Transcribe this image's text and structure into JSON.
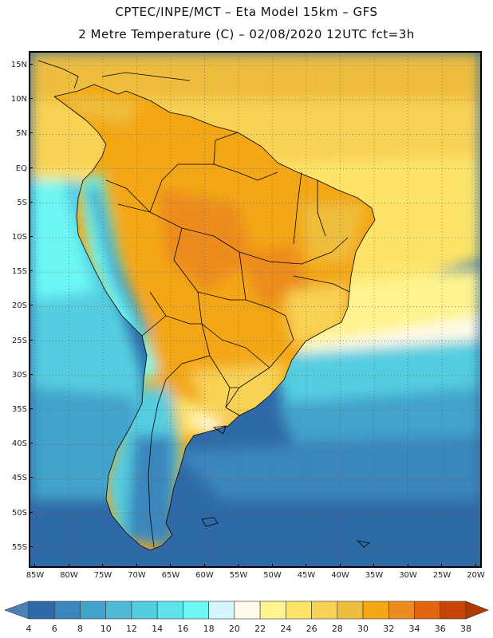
{
  "title_line1": "CPTEC/INPE/MCT –  Eta Model 15km – GFS",
  "title_line2": "2 Metre Temperature (C) – 02/08/2020 12UTC fct=3h",
  "map": {
    "latitudes": [
      "15N",
      "10N",
      "5N",
      "EQ",
      "5S",
      "10S",
      "15S",
      "20S",
      "25S",
      "30S",
      "35S",
      "40S",
      "45S",
      "50S",
      "55S"
    ],
    "longitudes": [
      "85W",
      "80W",
      "75W",
      "70W",
      "65W",
      "60W",
      "55W",
      "50W",
      "45W",
      "40W",
      "35W",
      "30W",
      "25W",
      "20W"
    ]
  },
  "legend": {
    "labels": [
      "4",
      "6",
      "8",
      "10",
      "12",
      "14",
      "16",
      "18",
      "20",
      "22",
      "24",
      "26",
      "28",
      "30",
      "32",
      "34",
      "36",
      "38"
    ],
    "colors": [
      "#4a7fb8",
      "#2f6aa8",
      "#3b86bd",
      "#43a3cb",
      "#4fb9d8",
      "#54cde0",
      "#5ee3ea",
      "#6cf7f5",
      "#d4f5fb",
      "#fffae8",
      "#fff38f",
      "#fde468",
      "#f8d255",
      "#efbd3d",
      "#f3a712",
      "#ec8c1e",
      "#e3650f",
      "#c64406",
      "#b03a06"
    ]
  }
}
